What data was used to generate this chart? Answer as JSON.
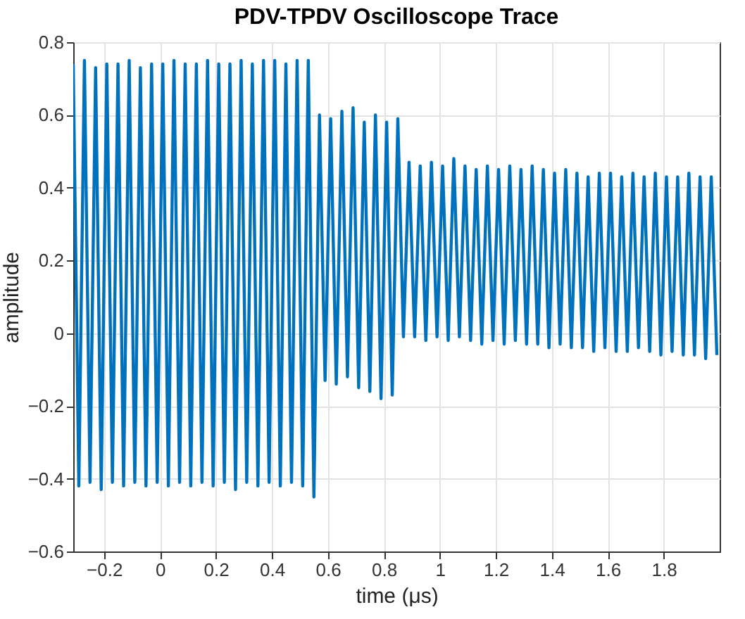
{
  "chart_data": {
    "type": "line",
    "title": "PDV-TPDV Oscilloscope Trace",
    "xlabel": "time (μs)",
    "ylabel": "amplitude",
    "x": [
      -0.31,
      -0.29,
      -0.27,
      -0.25,
      -0.23,
      -0.21,
      -0.19,
      -0.17,
      -0.15,
      -0.13,
      -0.11,
      -0.09,
      -0.07,
      -0.05,
      -0.03,
      -0.01,
      0.01,
      0.03,
      0.05,
      0.07,
      0.09,
      0.11,
      0.13,
      0.15,
      0.17,
      0.19,
      0.21,
      0.23,
      0.25,
      0.27,
      0.29,
      0.31,
      0.33,
      0.35,
      0.37,
      0.39,
      0.41,
      0.43,
      0.45,
      0.47,
      0.49,
      0.51,
      0.53,
      0.55,
      0.57,
      0.59,
      0.61,
      0.63,
      0.65,
      0.67,
      0.69,
      0.71,
      0.73,
      0.75,
      0.77,
      0.79,
      0.81,
      0.83,
      0.85,
      0.87,
      0.89,
      0.91,
      0.93,
      0.95,
      0.97,
      0.99,
      1.01,
      1.03,
      1.05,
      1.07,
      1.09,
      1.11,
      1.13,
      1.15,
      1.17,
      1.19,
      1.21,
      1.23,
      1.25,
      1.27,
      1.29,
      1.31,
      1.33,
      1.35,
      1.37,
      1.39,
      1.41,
      1.43,
      1.45,
      1.47,
      1.49,
      1.51,
      1.53,
      1.55,
      1.57,
      1.59,
      1.61,
      1.63,
      1.65,
      1.67,
      1.69,
      1.71,
      1.73,
      1.75,
      1.77,
      1.79,
      1.81,
      1.83,
      1.85,
      1.87,
      1.89,
      1.91,
      1.93,
      1.95,
      1.97,
      1.99
    ],
    "series": [
      {
        "color": "#0072bd",
        "values": [
          0.74,
          -0.42,
          0.75,
          -0.41,
          0.73,
          -0.43,
          0.74,
          -0.41,
          0.74,
          -0.42,
          0.75,
          -0.41,
          0.73,
          -0.42,
          0.74,
          -0.41,
          0.74,
          -0.42,
          0.75,
          -0.41,
          0.74,
          -0.42,
          0.74,
          -0.41,
          0.75,
          -0.42,
          0.74,
          -0.41,
          0.74,
          -0.43,
          0.75,
          -0.41,
          0.74,
          -0.42,
          0.75,
          -0.41,
          0.75,
          -0.42,
          0.74,
          -0.41,
          0.75,
          -0.42,
          0.75,
          -0.45,
          0.6,
          -0.13,
          0.59,
          -0.14,
          0.61,
          -0.12,
          0.62,
          -0.15,
          0.58,
          -0.16,
          0.6,
          -0.18,
          0.58,
          -0.17,
          0.59,
          -0.01,
          0.47,
          -0.01,
          0.46,
          -0.02,
          0.47,
          -0.01,
          0.46,
          -0.02,
          0.48,
          -0.01,
          0.46,
          -0.02,
          0.45,
          -0.03,
          0.46,
          -0.02,
          0.45,
          -0.03,
          0.46,
          -0.02,
          0.45,
          -0.03,
          0.46,
          -0.03,
          0.45,
          -0.04,
          0.44,
          -0.03,
          0.45,
          -0.04,
          0.44,
          -0.04,
          0.43,
          -0.05,
          0.44,
          -0.04,
          0.44,
          -0.05,
          0.43,
          -0.05,
          0.44,
          -0.04,
          0.43,
          -0.05,
          0.44,
          -0.06,
          0.43,
          -0.05,
          0.43,
          -0.06,
          0.44,
          -0.06,
          0.43,
          -0.07,
          0.43,
          -0.06
        ]
      }
    ],
    "xlim": [
      -0.31,
      2.0
    ],
    "ylim": [
      -0.6,
      0.8
    ],
    "xticks": [
      -0.2,
      0,
      0.2,
      0.4,
      0.6,
      0.8,
      1,
      1.2,
      1.4,
      1.6,
      1.8
    ],
    "yticks": [
      -0.6,
      -0.4,
      -0.2,
      0,
      0.2,
      0.4,
      0.6,
      0.8
    ],
    "grid": true,
    "legend": false
  }
}
